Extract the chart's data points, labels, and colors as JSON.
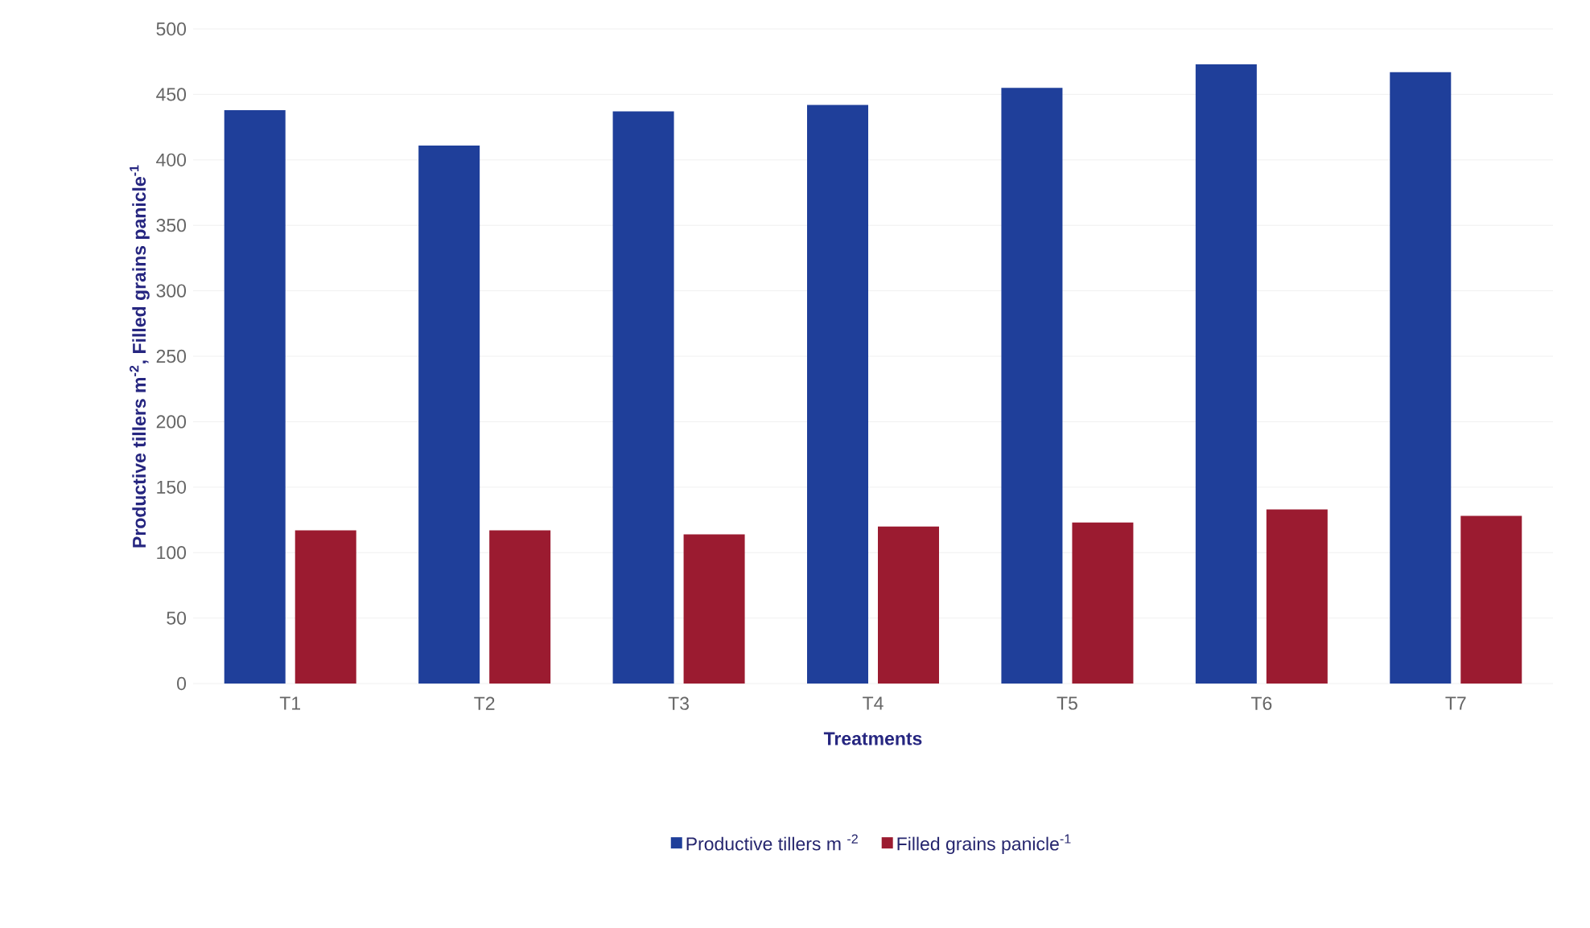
{
  "chart_data": {
    "type": "bar",
    "xlabel": "Treatments",
    "ylabel": "Productive tillers m$^{-2}$, Filled grains panicle$^{-1}$",
    "categories": [
      "T1",
      "T2",
      "T3",
      "T4",
      "T5",
      "T6",
      "T7"
    ],
    "series": [
      {
        "name": "Productive tillers m $^{-2}$",
        "color": "#1f3f9a",
        "values": [
          438,
          411,
          437,
          442,
          455,
          473,
          467
        ]
      },
      {
        "name": "Filled grains panicle$^{-1}$",
        "color": "#9b1b30",
        "values": [
          117,
          117,
          114,
          120,
          123,
          133,
          128
        ]
      }
    ],
    "ylim": [
      0,
      500
    ],
    "yticks": [
      0,
      50,
      100,
      150,
      200,
      250,
      300,
      350,
      400,
      450,
      500
    ],
    "grid": "y",
    "legend": "bottom"
  }
}
